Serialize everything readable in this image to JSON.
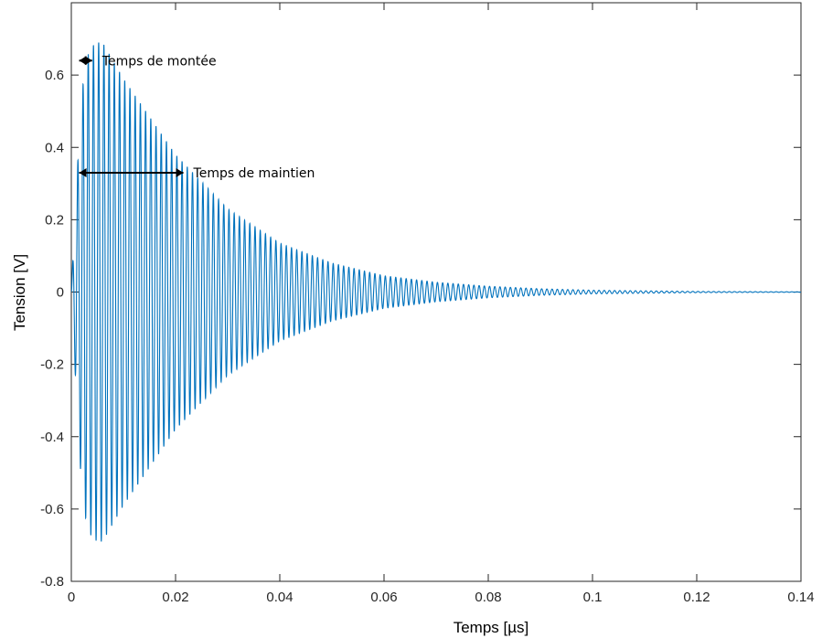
{
  "chart_data": {
    "type": "line",
    "xlabel": "Temps [µs]",
    "ylabel": "Tension [V]",
    "xlim": [
      0,
      0.14
    ],
    "ylim": [
      -0.8,
      0.8
    ],
    "xticks": [
      0,
      0.02,
      0.04,
      0.06,
      0.08,
      0.1,
      0.12,
      0.14
    ],
    "xtick_labels": [
      "0",
      "0.02",
      "0.04",
      "0.06",
      "0.08",
      "0.1",
      "0.12",
      "0.14"
    ],
    "yticks": [
      -0.8,
      -0.6,
      -0.4,
      -0.2,
      0,
      0.2,
      0.4,
      0.6
    ],
    "ytick_labels": [
      "-0.8",
      "-0.6",
      "-0.4",
      "-0.2",
      "0",
      "0.2",
      "0.4",
      "0.6"
    ],
    "grid": false,
    "series": [
      {
        "color": "#0072BD",
        "description": "damped sinusoid: amplitude rises to peak then decays exponentially",
        "oscillation_period": 0.001,
        "envelope_points": [
          {
            "t": 0,
            "a": 0
          },
          {
            "t": 0.001,
            "a": 0.3
          },
          {
            "t": 0.002,
            "a": 0.55
          },
          {
            "t": 0.003,
            "a": 0.65
          },
          {
            "t": 0.004,
            "a": 0.68
          },
          {
            "t": 0.005,
            "a": 0.69
          },
          {
            "t": 0.006,
            "a": 0.69
          },
          {
            "t": 0.01,
            "a": 0.59
          },
          {
            "t": 0.02,
            "a": 0.38
          },
          {
            "t": 0.03,
            "a": 0.23
          },
          {
            "t": 0.04,
            "a": 0.135
          },
          {
            "t": 0.05,
            "a": 0.08
          },
          {
            "t": 0.06,
            "a": 0.045
          },
          {
            "t": 0.07,
            "a": 0.027
          },
          {
            "t": 0.08,
            "a": 0.016
          },
          {
            "t": 0.09,
            "a": 0.009
          },
          {
            "t": 0.1,
            "a": 0.005
          },
          {
            "t": 0.12,
            "a": 0.0017
          },
          {
            "t": 0.14,
            "a": 0.0006
          }
        ]
      }
    ],
    "annotations": [
      {
        "text": "Temps de montée",
        "x_start": 0.0015,
        "x_end": 0.004,
        "y": 0.64
      },
      {
        "text": "Temps de maintien",
        "x_start": 0.0015,
        "x_end": 0.0215,
        "y": 0.33
      }
    ]
  }
}
